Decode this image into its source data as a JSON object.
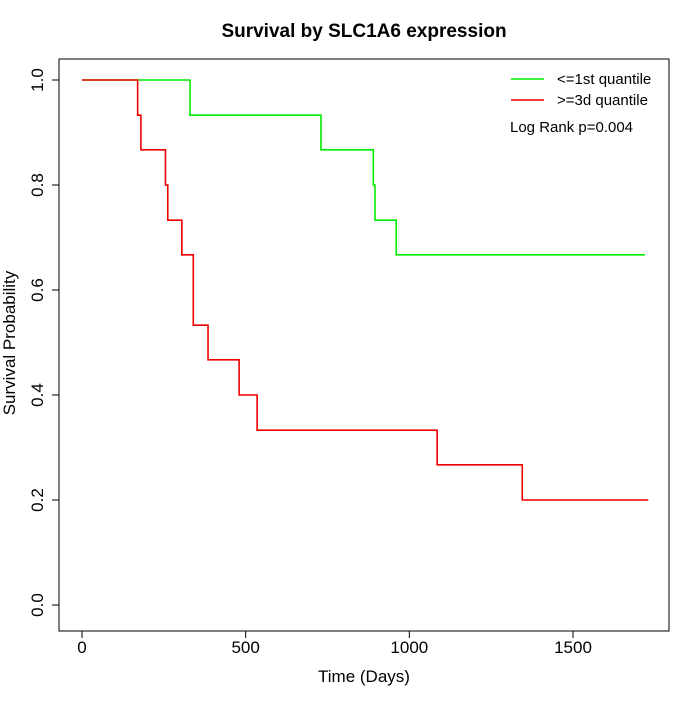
{
  "chart_data": {
    "type": "line",
    "subtype": "kaplan-meier step",
    "title": "Survival by SLC1A6 expression",
    "xlabel": "Time (Days)",
    "ylabel": "Survival Probability",
    "xlim": [
      0,
      1800
    ],
    "ylim": [
      0,
      1.0
    ],
    "x_ticks": [
      0,
      500,
      1000,
      1500
    ],
    "x_tick_labels": [
      "0",
      "500",
      "1000",
      "1500"
    ],
    "y_ticks": [
      0.0,
      0.2,
      0.4,
      0.6,
      0.8,
      1.0
    ],
    "y_tick_labels": [
      "0.0",
      "0.2",
      "0.4",
      "0.6",
      "0.8",
      "1.0"
    ],
    "grid": false,
    "legend_position": "top-right",
    "series": [
      {
        "name": "<=1st quantile",
        "color": "#00ee00",
        "x": [
          0,
          330,
          730,
          890,
          895,
          960,
          1720
        ],
        "y": [
          1.0,
          0.933,
          0.867,
          0.8,
          0.733,
          0.667,
          0.667
        ]
      },
      {
        "name": ">=3d quantile",
        "color": "#ee0000",
        "x": [
          0,
          170,
          180,
          255,
          262,
          305,
          340,
          385,
          480,
          535,
          1085,
          1345,
          1730
        ],
        "y": [
          1.0,
          0.933,
          0.867,
          0.8,
          0.733,
          0.667,
          0.533,
          0.467,
          0.4,
          0.333,
          0.267,
          0.2,
          0.2
        ]
      }
    ],
    "annotations": [
      "Log Rank p=0.004"
    ]
  }
}
